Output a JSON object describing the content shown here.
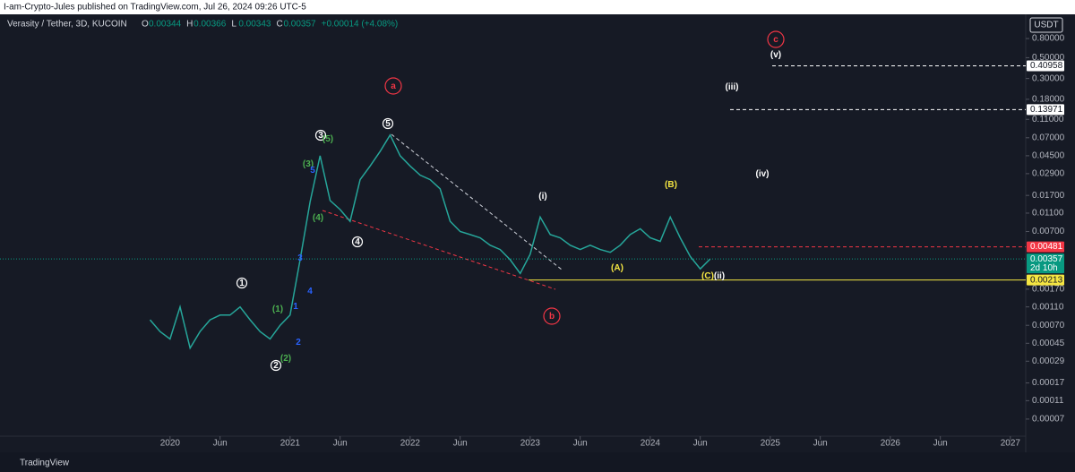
{
  "header": {
    "publisher": "I-am-Crypto-Jules published on TradingView.com, Jul 26, 2024 09:26 UTC-5",
    "brand": "TradingView"
  },
  "chart_data": {
    "type": "line",
    "log_scale": true,
    "color": "#26a69a",
    "symbol": "Verasity / Tether, 3D, KUCOIN",
    "ohlc": [
      {
        "name": "O",
        "value": 0.00344
      },
      {
        "name": "H",
        "value": 0.00366
      },
      {
        "name": "L",
        "value": 0.00343
      },
      {
        "name": "C",
        "value": 0.00357
      }
    ],
    "change": "+0.00014 (+4.08%)",
    "currency": "USDT",
    "x": [
      "2019-11",
      "2019-12",
      "2020-01",
      "2020-02",
      "2020-03",
      "2020-04",
      "2020-05",
      "2020-06",
      "2020-07",
      "2020-08",
      "2020-09",
      "2020-10",
      "2020-11",
      "2020-12",
      "2021-01",
      "2021-02",
      "2021-03",
      "2021-04",
      "2021-05",
      "2021-06",
      "2021-07",
      "2021-08",
      "2021-09",
      "2021-10",
      "2021-11",
      "2021-12",
      "2022-01",
      "2022-02",
      "2022-03",
      "2022-04",
      "2022-05",
      "2022-06",
      "2022-07",
      "2022-08",
      "2022-09",
      "2022-10",
      "2022-11",
      "2022-12",
      "2023-01",
      "2023-02",
      "2023-03",
      "2023-04",
      "2023-05",
      "2023-06",
      "2023-07",
      "2023-08",
      "2023-09",
      "2023-10",
      "2023-11",
      "2023-12",
      "2024-01",
      "2024-02",
      "2024-03",
      "2024-04",
      "2024-05",
      "2024-06",
      "2024-07"
    ],
    "values": [
      0.0008,
      0.0006,
      0.0005,
      0.0011,
      0.0004,
      0.0006,
      0.0008,
      0.0009,
      0.0009,
      0.0011,
      0.0008,
      0.0006,
      0.0005,
      0.0007,
      0.0009,
      0.0035,
      0.0146,
      0.045,
      0.015,
      0.012,
      0.009,
      0.025,
      0.035,
      0.05,
      0.075,
      0.045,
      0.035,
      0.028,
      0.025,
      0.02,
      0.009,
      0.007,
      0.0065,
      0.006,
      0.005,
      0.0045,
      0.0035,
      0.0025,
      0.004,
      0.01,
      0.0065,
      0.006,
      0.005,
      0.0045,
      0.005,
      0.0045,
      0.0042,
      0.005,
      0.0065,
      0.0075,
      0.006,
      0.0055,
      0.01,
      0.006,
      0.0038,
      0.0028,
      0.00357
    ],
    "xlim": [
      "2018-08",
      "2027-02"
    ],
    "xticks": [
      {
        "value": "2020-01",
        "label": "2020"
      },
      {
        "value": "2020-06",
        "label": "Jun"
      },
      {
        "value": "2021-01",
        "label": "2021"
      },
      {
        "value": "2021-06",
        "label": "Jun"
      },
      {
        "value": "2022-01",
        "label": "2022"
      },
      {
        "value": "2022-06",
        "label": "Jun"
      },
      {
        "value": "2023-01",
        "label": "2023"
      },
      {
        "value": "2023-06",
        "label": "Jun"
      },
      {
        "value": "2024-01",
        "label": "2024"
      },
      {
        "value": "2024-06",
        "label": "Jun"
      },
      {
        "value": "2025-01",
        "label": "2025"
      },
      {
        "value": "2025-06",
        "label": "Jun"
      },
      {
        "value": "2026-01",
        "label": "2026"
      },
      {
        "value": "2026-06",
        "label": "Jun"
      },
      {
        "value": "2027-01",
        "label": "2027"
      }
    ],
    "ylim": [
      4.6e-05,
      1.45
    ],
    "yticks": [
      {
        "value": 0.8,
        "label": "0.80000"
      },
      {
        "value": 0.5,
        "label": "0.50000"
      },
      {
        "value": 0.3,
        "label": "0.30000"
      },
      {
        "value": 0.18,
        "label": "0.18000"
      },
      {
        "value": 0.11,
        "label": "0.11000"
      },
      {
        "value": 0.07,
        "label": "0.07000"
      },
      {
        "value": 0.045,
        "label": "0.04500"
      },
      {
        "value": 0.029,
        "label": "0.02900"
      },
      {
        "value": 0.017,
        "label": "0.01700"
      },
      {
        "value": 0.011,
        "label": "0.01100"
      },
      {
        "value": 0.007,
        "label": "0.00700"
      },
      {
        "value": 0.0017,
        "label": "0.00170"
      },
      {
        "value": 0.0011,
        "label": "0.00110"
      },
      {
        "value": 0.0007,
        "label": "0.00070"
      },
      {
        "value": 0.00045,
        "label": "0.00045"
      },
      {
        "value": 0.00029,
        "label": "0.00029"
      },
      {
        "value": 0.00017,
        "label": "0.00017"
      },
      {
        "value": 0.00011,
        "label": "0.00011"
      },
      {
        "value": 7e-05,
        "label": "0.00007"
      }
    ],
    "levels": [
      {
        "value": 0.40958,
        "color": "#ffffff"
      },
      {
        "value": 0.13971,
        "color": "#ffffff"
      },
      {
        "value": 0.00481,
        "color": "#f23645"
      },
      {
        "value": 0.00357,
        "color": "#089981"
      },
      {
        "value": 0.00213,
        "color": "#f5e642"
      }
    ],
    "countdown": "2d 10h",
    "annotations": [
      "1",
      "2",
      "3",
      "4",
      "5",
      "(1)",
      "(2)",
      "(3)",
      "(4)",
      "(5)",
      "1",
      "2",
      "3",
      "4",
      "5",
      "a",
      "b",
      "c",
      "(i)",
      "(ii)",
      "(iii)",
      "(iv)",
      "(v)",
      "(A)",
      "(B)",
      "(C)"
    ]
  }
}
